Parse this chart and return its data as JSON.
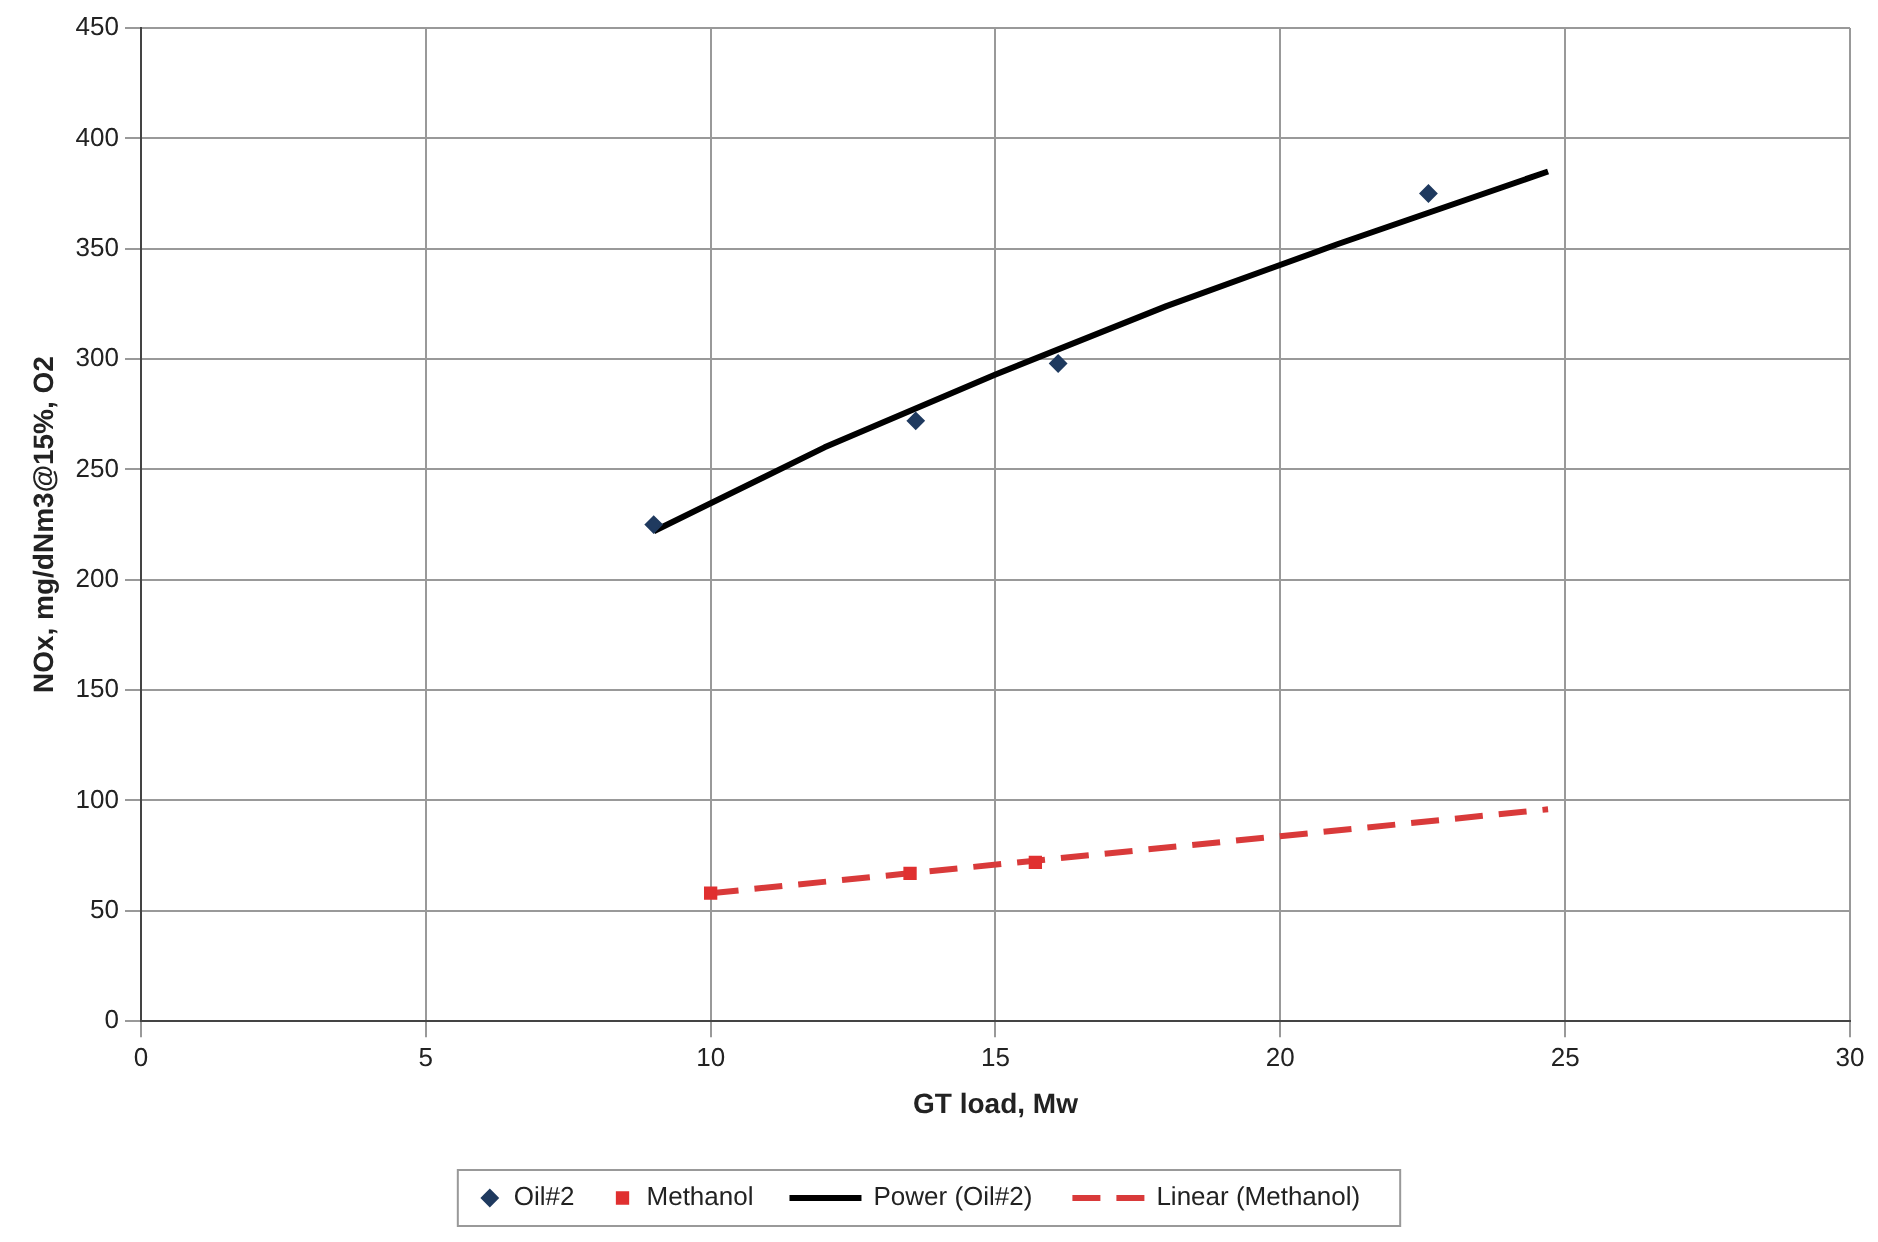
{
  "chart_data": {
    "type": "scatter",
    "xlabel": "GT load, Mw",
    "ylabel": "NOx, mg/dNm3@15%, O2",
    "xlim": [
      0,
      30
    ],
    "xticks": [
      0,
      5,
      10,
      15,
      20,
      25,
      30
    ],
    "ylim": [
      0,
      450
    ],
    "yticks": [
      0,
      50,
      100,
      150,
      200,
      250,
      300,
      350,
      400,
      450
    ],
    "grid": true,
    "legend": "bottom",
    "series": [
      {
        "name": "Oil#2",
        "marker": "diamond",
        "color": "#1f3a5f",
        "x": [
          9,
          13.6,
          16.1,
          22.6
        ],
        "values": [
          225,
          272,
          298,
          375
        ]
      },
      {
        "name": "Methanol",
        "marker": "square",
        "color": "#e03030",
        "x": [
          10,
          13.5,
          15.7
        ],
        "values": [
          58,
          67,
          72
        ]
      },
      {
        "name": "Power (Oil#2)",
        "type": "line",
        "marker": "none",
        "line_style": "solid",
        "color": "#000000",
        "x": [
          9,
          12,
          15,
          18,
          21,
          24.7
        ],
        "values": [
          222,
          260,
          293,
          324,
          352,
          385
        ]
      },
      {
        "name": "Linear (Methanol)",
        "type": "line",
        "marker": "none",
        "line_style": "dashed",
        "color": "#d93a3a",
        "x": [
          10,
          24.7
        ],
        "values": [
          58,
          96
        ]
      }
    ]
  }
}
